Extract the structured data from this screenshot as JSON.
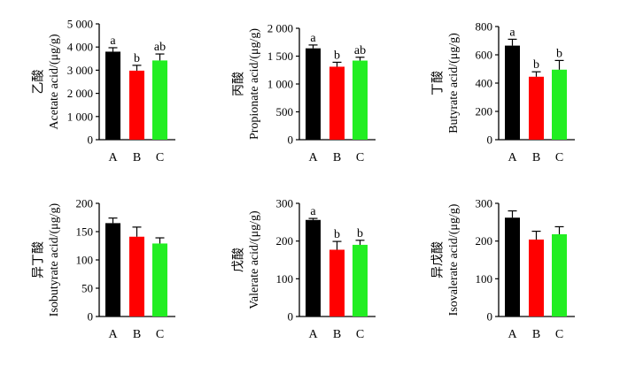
{
  "colors": {
    "A": "#000000",
    "B": "#ff0000",
    "C": "#22ee22"
  },
  "chart_data": [
    {
      "type": "bar",
      "categories": [
        "A",
        "B",
        "C"
      ],
      "ylabel": "乙酸\nAcetate acid/(μg/g)",
      "ylim": [
        0,
        5000
      ],
      "yticks": [
        "0",
        "1 000",
        "2 000",
        "3 000",
        "4 000",
        "5 000"
      ],
      "values": [
        3800,
        2980,
        3420
      ],
      "errors": [
        170,
        230,
        280
      ],
      "letters": [
        "a",
        "b",
        "ab"
      ]
    },
    {
      "type": "bar",
      "categories": [
        "A",
        "B",
        "C"
      ],
      "ylabel": "丙酸\nPropionate acid/(μg/g)",
      "ylim": [
        0,
        2000
      ],
      "yticks": [
        "0",
        "500",
        "1 000",
        "1 500",
        "2 000"
      ],
      "values": [
        1640,
        1310,
        1420
      ],
      "errors": [
        60,
        80,
        60
      ],
      "letters": [
        "a",
        "b",
        "ab"
      ]
    },
    {
      "type": "bar",
      "categories": [
        "A",
        "B",
        "C"
      ],
      "ylabel": "丁酸\nButyrate acid/(μg/g)",
      "ylim": [
        0,
        800
      ],
      "yticks": [
        "0",
        "200",
        "400",
        "600",
        "800"
      ],
      "values": [
        665,
        445,
        495
      ],
      "errors": [
        45,
        35,
        65
      ],
      "letters": [
        "a",
        "b",
        "b"
      ]
    },
    {
      "type": "bar",
      "categories": [
        "A",
        "B",
        "C"
      ],
      "ylabel": "异丁酸\nIsobutyrate acid/(μg/g)",
      "ylim": [
        0,
        200
      ],
      "yticks": [
        "0",
        "50",
        "100",
        "150",
        "200"
      ],
      "values": [
        165,
        141,
        129
      ],
      "errors": [
        9,
        17,
        10
      ],
      "letters": [
        "",
        "",
        ""
      ]
    },
    {
      "type": "bar",
      "categories": [
        "A",
        "B",
        "C"
      ],
      "ylabel": "戊酸\nValerate acid/(μg/g)",
      "ylim": [
        0,
        300
      ],
      "yticks": [
        "0",
        "100",
        "200",
        "300"
      ],
      "values": [
        256,
        177,
        190
      ],
      "errors": [
        4,
        22,
        12
      ],
      "letters": [
        "a",
        "b",
        "b"
      ]
    },
    {
      "type": "bar",
      "categories": [
        "A",
        "B",
        "C"
      ],
      "ylabel": "异戊酸\nIsovalerate acid/(μg/g)",
      "ylim": [
        0,
        300
      ],
      "yticks": [
        "0",
        "100",
        "200",
        "300"
      ],
      "values": [
        262,
        204,
        218
      ],
      "errors": [
        18,
        22,
        20
      ],
      "letters": [
        "",
        "",
        ""
      ]
    }
  ]
}
